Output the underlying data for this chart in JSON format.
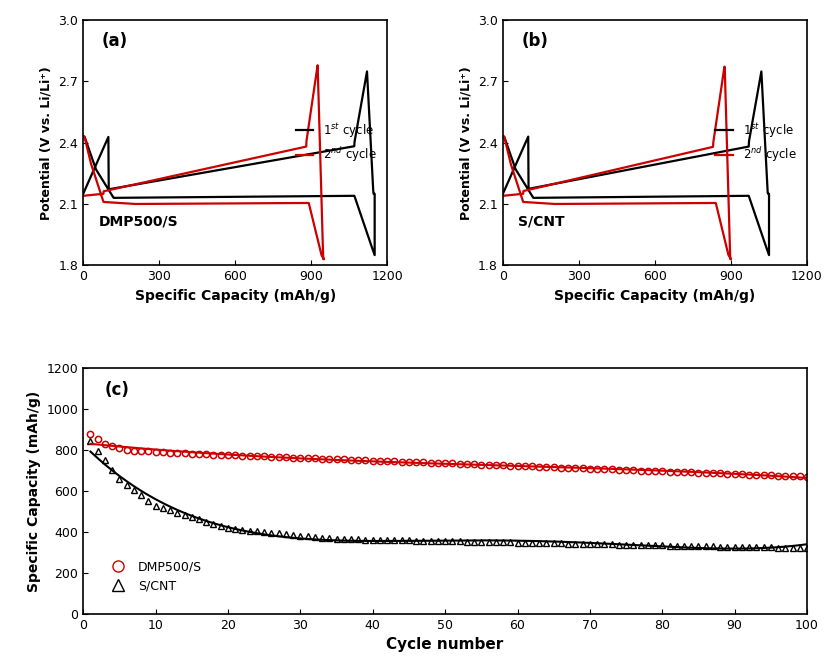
{
  "panel_a_label": "DMP500/S",
  "panel_b_label": "S/CNT",
  "ab_xlabel": "Specific Capacity (mAh/g)",
  "ab_ylabel": "Potential (V vs. Li/Li⁺)",
  "ab_xlim": [
    0,
    1200
  ],
  "ab_ylim": [
    1.8,
    3.0
  ],
  "ab_xticks": [
    0,
    300,
    600,
    900,
    1200
  ],
  "ab_yticks": [
    1.8,
    2.1,
    2.4,
    2.7,
    3.0
  ],
  "c_xlabel": "Cycle number",
  "c_ylabel": "Specific Capacity (mAh/g)",
  "c_xlim": [
    0,
    100
  ],
  "c_ylim": [
    0,
    1200
  ],
  "c_xticks": [
    0,
    10,
    20,
    30,
    40,
    50,
    60,
    70,
    80,
    90,
    100
  ],
  "c_yticks": [
    0,
    200,
    400,
    600,
    800,
    1000,
    1200
  ],
  "color_1st": "#000000",
  "color_2nd": "#cc0000",
  "lw": 1.6
}
